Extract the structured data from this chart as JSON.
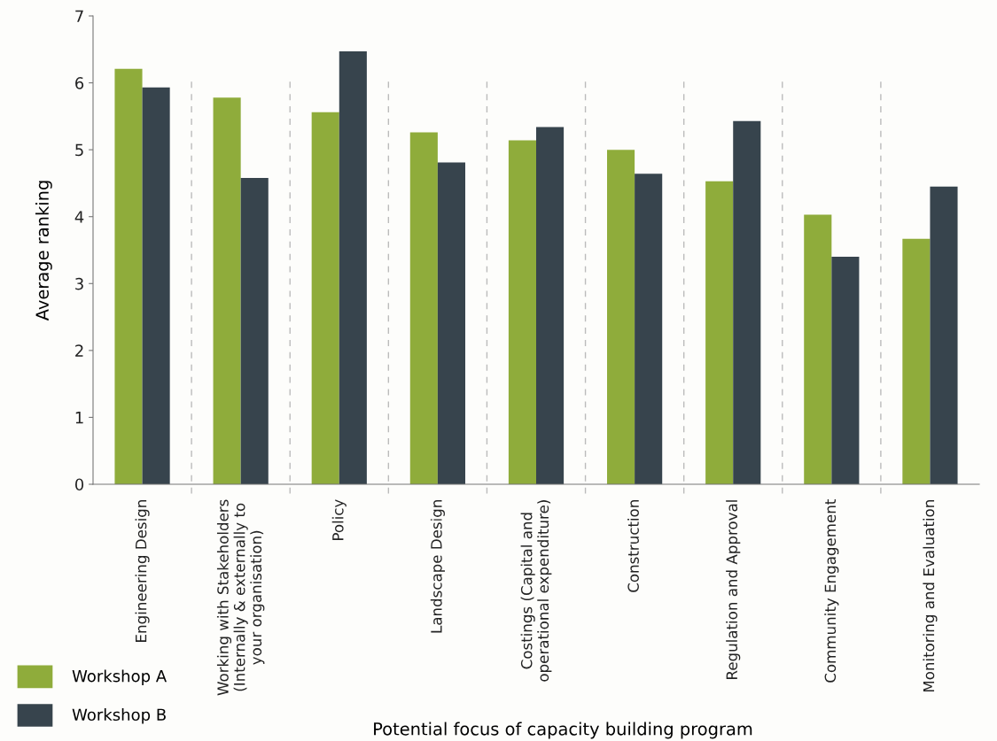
{
  "chart_data": {
    "type": "bar",
    "xlabel": "Potential focus of capacity building program",
    "ylabel": "Average ranking",
    "categories": [
      "Engineering Design",
      "Working with Stakeholders\n(Internally & externally to\nyour organisation)",
      "Policy",
      "Landscape Design",
      "Costings (Capital and\noperational expenditure)",
      "Construction",
      "Regulation and Approval",
      "Community Engagement",
      "Monitoring and Evaluation"
    ],
    "series": [
      {
        "name": "Workshop A",
        "color": "#8fac3b",
        "values": [
          6.21,
          5.78,
          5.56,
          5.26,
          5.14,
          5.0,
          4.53,
          4.03,
          3.67
        ]
      },
      {
        "name": "Workshop B",
        "color": "#37444d",
        "values": [
          5.93,
          4.58,
          6.47,
          4.81,
          5.34,
          4.64,
          5.43,
          3.4,
          4.45
        ]
      }
    ],
    "ylim": [
      0,
      7
    ],
    "yticks": [
      0,
      1,
      2,
      3,
      4,
      5,
      6,
      7
    ],
    "grid": "x",
    "legend": "bottom left"
  }
}
